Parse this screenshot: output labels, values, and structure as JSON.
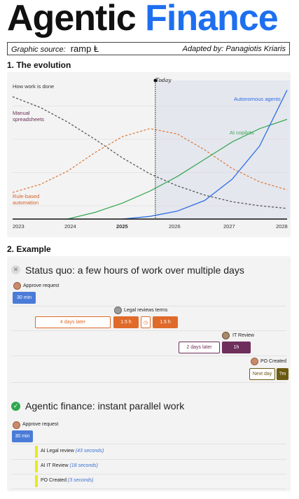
{
  "header": {
    "title_word1": "Agentic",
    "title_word2": "Finance",
    "source_label": "Graphic source:",
    "source_brand": "ramp Ⱡ",
    "adapted_by": "Adapted by: Panagiotis Kriaris"
  },
  "section1": {
    "heading": "1. The evolution"
  },
  "section2": {
    "heading": "2. Example"
  },
  "chart_data": {
    "type": "line",
    "ylabel": "How work is done",
    "x": [
      2023,
      2024,
      2025,
      2026,
      2027,
      2028
    ],
    "x_tick_labels": [
      "2023",
      "2024",
      "2025",
      "2026",
      "2027",
      "2028"
    ],
    "today_label": "Today",
    "today_x": 2025.6,
    "series": [
      {
        "name": "Manual spreadsheets",
        "color": "#555555",
        "style": "dashed",
        "points": [
          [
            2023.0,
            0.92
          ],
          [
            2023.5,
            0.84
          ],
          [
            2024.0,
            0.73
          ],
          [
            2024.5,
            0.6
          ],
          [
            2025.0,
            0.46
          ],
          [
            2025.5,
            0.34
          ],
          [
            2026.0,
            0.25
          ],
          [
            2026.5,
            0.18
          ],
          [
            2027.0,
            0.13
          ],
          [
            2027.5,
            0.1
          ],
          [
            2028.0,
            0.08
          ]
        ]
      },
      {
        "name": "Rule-based automation",
        "color": "#e07b3a",
        "style": "dashed",
        "points": [
          [
            2023.0,
            0.2
          ],
          [
            2023.5,
            0.26
          ],
          [
            2024.0,
            0.36
          ],
          [
            2024.5,
            0.5
          ],
          [
            2025.0,
            0.62
          ],
          [
            2025.5,
            0.68
          ],
          [
            2026.0,
            0.64
          ],
          [
            2026.5,
            0.52
          ],
          [
            2027.0,
            0.38
          ],
          [
            2027.5,
            0.28
          ],
          [
            2028.0,
            0.22
          ]
        ]
      },
      {
        "name": "AI copilots",
        "color": "#3aa856",
        "style": "solid",
        "points": [
          [
            2024.0,
            0.0
          ],
          [
            2024.5,
            0.05
          ],
          [
            2025.0,
            0.12
          ],
          [
            2025.5,
            0.21
          ],
          [
            2026.0,
            0.32
          ],
          [
            2026.5,
            0.45
          ],
          [
            2027.0,
            0.58
          ],
          [
            2027.5,
            0.68
          ],
          [
            2028.0,
            0.75
          ]
        ]
      },
      {
        "name": "Autonomous agents",
        "color": "#2f6ee6",
        "style": "solid",
        "points": [
          [
            2025.0,
            0.0
          ],
          [
            2025.5,
            0.02
          ],
          [
            2026.0,
            0.06
          ],
          [
            2026.5,
            0.14
          ],
          [
            2027.0,
            0.3
          ],
          [
            2027.5,
            0.55
          ],
          [
            2028.0,
            0.97
          ]
        ]
      }
    ],
    "series_labels": [
      "Manual\nspreadsheets",
      "Rule-based\nautomation",
      "AI copilots",
      "Autonomous agents"
    ],
    "grid": true
  },
  "status_quo": {
    "title": "Status quo: a few hours of work over multiple days",
    "approve_label": "Approve request",
    "approve_time": "30 min",
    "legal_label": "Legal reviews terms",
    "legal_wait": "4 days later",
    "legal_t1": "1.5 h",
    "legal_t2": "1.5 h",
    "it_label": "IT Review",
    "it_wait": "2 days later",
    "it_time": "1h",
    "po_label": "PO Created",
    "po_wait": "Next day",
    "po_time": "?m"
  },
  "agentic": {
    "title": "Agentic finance: instant parallel work",
    "approve_label": "Approve request",
    "approve_time": "30 min",
    "tasks": [
      {
        "name": "AI Legal review",
        "time": "(43 seconds)"
      },
      {
        "name": "AI IT Review",
        "time": "(18 seconds)"
      },
      {
        "name": "PO Created",
        "time": "(3 seconds)"
      }
    ]
  },
  "colors": {
    "accent_blue": "#1e6ff0",
    "approve_blue": "#4a7bd8",
    "legal_orange": "#e06a2a",
    "it_purple": "#6e2f5c",
    "po_olive": "#6b5a12",
    "task_yellow": "#e6ea1c"
  }
}
